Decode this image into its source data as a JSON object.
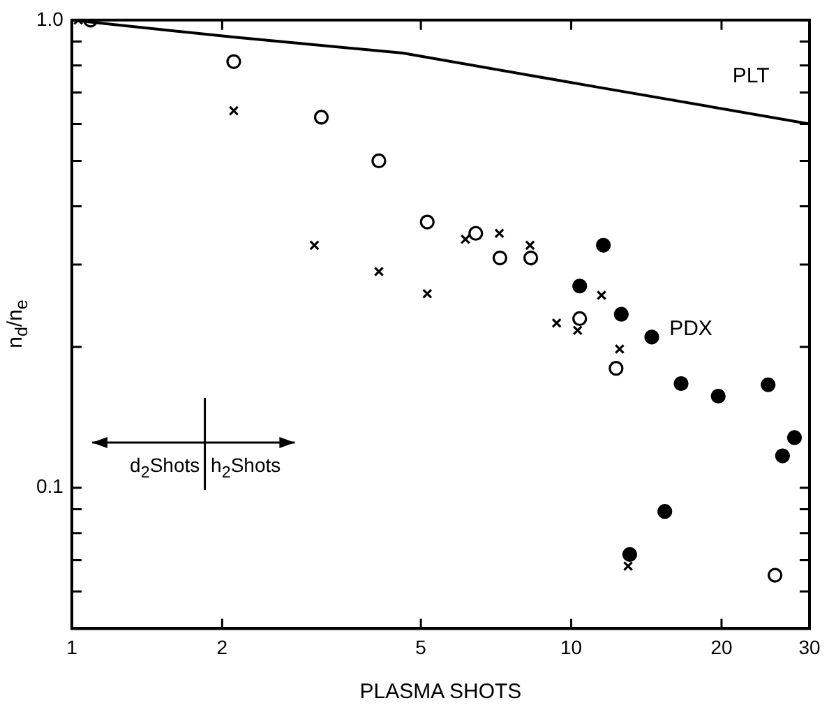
{
  "chart_data": {
    "type": "scatter",
    "xlabel": "PLASMA SHOTS",
    "ylabel": "n$_{d}$/n$_{e}$",
    "log": "xy",
    "xlim": [
      1,
      30
    ],
    "ylim": [
      0.05,
      1
    ],
    "xticks": [
      1,
      2,
      5,
      10,
      20,
      30
    ],
    "yticks": [
      {
        "value": 0.06,
        "label": null
      },
      {
        "value": 0.07,
        "label": null
      },
      {
        "value": 0.08,
        "label": null
      },
      {
        "value": 0.09,
        "label": null
      },
      0.1,
      {
        "value": 0.2,
        "label": null
      },
      {
        "value": 0.3,
        "label": null
      },
      {
        "value": 0.4,
        "label": null
      },
      {
        "value": 0.5,
        "label": null
      },
      {
        "value": 0.6,
        "label": null
      },
      {
        "value": 0.7,
        "label": null
      },
      {
        "value": 0.8,
        "label": null
      },
      {
        "value": 0.9,
        "label": null
      },
      {
        "value": 1,
        "label": "1.0"
      }
    ],
    "grid": false,
    "legend": "top right",
    "series": [
      {
        "name": "PLT",
        "type": "line",
        "color": "#000000",
        "marker": "none",
        "x": [
          1,
          2.1,
          4.6,
          11.2,
          30
        ],
        "values": [
          1.0,
          0.92,
          0.85,
          0.72,
          0.6
        ]
      },
      {
        "color": "#000000",
        "marker": "cross",
        "x": [
          1.03,
          2.11,
          3.06,
          4.12,
          5.15,
          6.14,
          7.18,
          8.27,
          9.35,
          10.3,
          11.5,
          12.5,
          13.0
        ],
        "values": [
          1.0,
          0.64,
          0.33,
          0.29,
          0.26,
          0.34,
          0.35,
          0.33,
          0.225,
          0.217,
          0.258,
          0.198,
          0.068
        ]
      },
      {
        "color": "#000000",
        "marker": "circle-open",
        "x": [
          1.09,
          2.11,
          3.16,
          4.12,
          5.15,
          6.44,
          7.2,
          8.3,
          10.4,
          12.3,
          25.6
        ],
        "values": [
          1.0,
          0.815,
          0.62,
          0.5,
          0.37,
          0.35,
          0.31,
          0.31,
          0.23,
          0.18,
          0.065
        ]
      },
      {
        "color": "#000000",
        "marker": "circle",
        "x": [
          10.4,
          11.6,
          12.6,
          13.1,
          14.5,
          15.4,
          16.6,
          19.7,
          24.8,
          26.5,
          28.0
        ],
        "values": [
          0.27,
          0.33,
          0.235,
          0.072,
          0.21,
          0.089,
          0.167,
          0.157,
          0.166,
          0.117,
          0.128
        ]
      }
    ],
    "annotations": [
      "PDX",
      "d$_{2}$Shots",
      "h$_{2}$Shots"
    ]
  }
}
